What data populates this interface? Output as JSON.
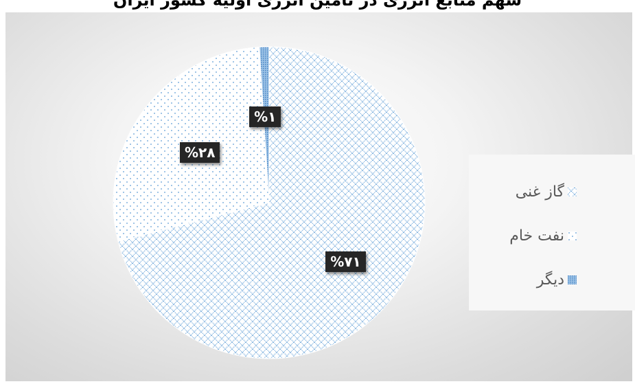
{
  "page": {
    "title": "سهم منابع انرژی در تامین انرژی اولیه کشور ایران"
  },
  "chart_data": {
    "type": "pie",
    "categories": [
      "گاز غنی",
      "نفت خام",
      "دیگر"
    ],
    "values": [
      71,
      28,
      1
    ],
    "data_labels": [
      "%۷۱",
      "%۲۸",
      "%۱"
    ],
    "legend": {
      "position": "right",
      "entries": [
        "گاز غنی",
        "نفت خام",
        "دیگر"
      ]
    },
    "colors": [
      "#5b9bd5",
      "#5b9bd5",
      "#5b9bd5"
    ]
  }
}
